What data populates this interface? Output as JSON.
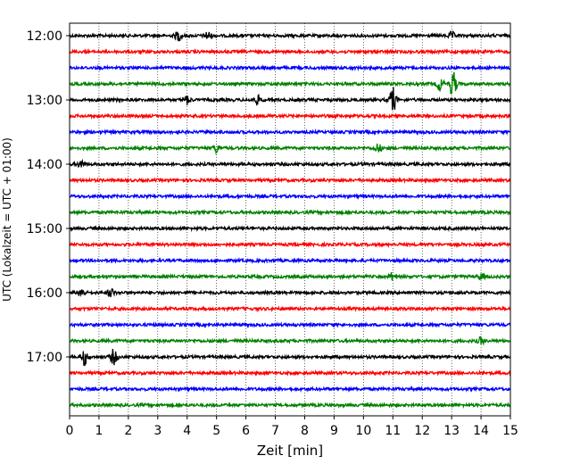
{
  "chart_data": {
    "type": "line",
    "title": "",
    "xlabel": "Zeit  [min]",
    "ylabel": "UTC (Lokalzeit = UTC + 01:00)",
    "xlim": [
      0,
      15
    ],
    "x_ticks": [
      "0",
      "1",
      "2",
      "3",
      "4",
      "5",
      "6",
      "7",
      "8",
      "9",
      "10",
      "11",
      "12",
      "13",
      "14",
      "15"
    ],
    "y_ticks": [
      "12:00",
      "13:00",
      "14:00",
      "15:00",
      "16:00",
      "17:00"
    ],
    "grid": "vertical dotted lines at each minute",
    "trace_interval_min": 15,
    "trace_colors": [
      "#000000",
      "#ff0000",
      "#0000ff",
      "#008000"
    ],
    "traces": [
      "12:00",
      "12:15",
      "12:30",
      "12:45",
      "13:00",
      "13:15",
      "13:30",
      "13:45",
      "14:00",
      "14:15",
      "14:30",
      "14:45",
      "15:00",
      "15:15",
      "15:30",
      "15:45",
      "16:00",
      "16:15",
      "16:30",
      "16:45",
      "17:00",
      "17:15",
      "17:30",
      "17:45"
    ],
    "events": [
      {
        "trace": "12:00",
        "t": 3.7,
        "amp": 0.6
      },
      {
        "trace": "12:00",
        "t": 4.7,
        "amp": 0.5
      },
      {
        "trace": "12:00",
        "t": 13.0,
        "amp": 0.4
      },
      {
        "trace": "12:45",
        "t": 13.05,
        "amp": 1.6
      },
      {
        "trace": "12:45",
        "t": 12.6,
        "amp": 0.8
      },
      {
        "trace": "13:00",
        "t": 11.0,
        "amp": 1.5
      },
      {
        "trace": "13:00",
        "t": 6.4,
        "amp": 0.5
      },
      {
        "trace": "13:00",
        "t": 4.0,
        "amp": 0.5
      },
      {
        "trace": "13:45",
        "t": 10.5,
        "amp": 0.5
      },
      {
        "trace": "13:45",
        "t": 5.0,
        "amp": 0.5
      },
      {
        "trace": "14:00",
        "t": 0.4,
        "amp": 0.5
      },
      {
        "trace": "15:45",
        "t": 11.0,
        "amp": 0.5
      },
      {
        "trace": "15:45",
        "t": 14.0,
        "amp": 0.4
      },
      {
        "trace": "16:00",
        "t": 0.4,
        "amp": 0.6
      },
      {
        "trace": "16:00",
        "t": 1.4,
        "amp": 0.5
      },
      {
        "trace": "16:45",
        "t": 14.0,
        "amp": 0.4
      },
      {
        "trace": "17:00",
        "t": 0.5,
        "amp": 1.0
      },
      {
        "trace": "17:00",
        "t": 1.5,
        "amp": 0.9
      }
    ]
  }
}
